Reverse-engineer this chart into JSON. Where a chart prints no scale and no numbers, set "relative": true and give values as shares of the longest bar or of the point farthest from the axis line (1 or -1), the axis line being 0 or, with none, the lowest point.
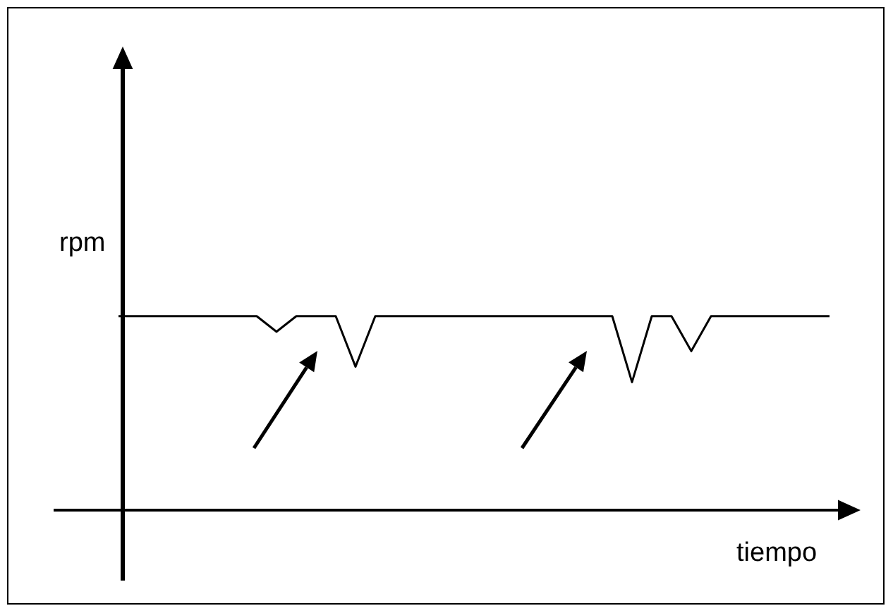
{
  "chart_data": {
    "type": "line",
    "xlabel": "tiempo",
    "ylabel": "rpm",
    "relative": true,
    "categories": [
      null,
      null,
      null,
      null,
      null,
      null,
      null,
      null,
      null,
      null,
      null,
      null,
      null,
      null,
      null,
      null,
      null,
      null,
      null,
      null,
      null,
      null,
      null,
      null,
      null,
      null,
      null,
      null,
      null,
      null,
      null,
      null,
      null,
      null,
      null,
      null,
      null
    ],
    "series": [
      {
        "color": "#000000",
        "values": [
          1,
          1,
          1,
          1,
          1,
          1,
          1,
          1,
          0.92,
          1,
          1,
          1,
          0.74,
          1,
          1,
          1,
          1,
          1,
          1,
          1,
          1,
          1,
          1,
          1,
          1,
          1,
          0.66,
          1,
          1,
          0.82,
          1,
          1,
          1,
          1,
          1,
          1,
          1
        ]
      }
    ]
  }
}
